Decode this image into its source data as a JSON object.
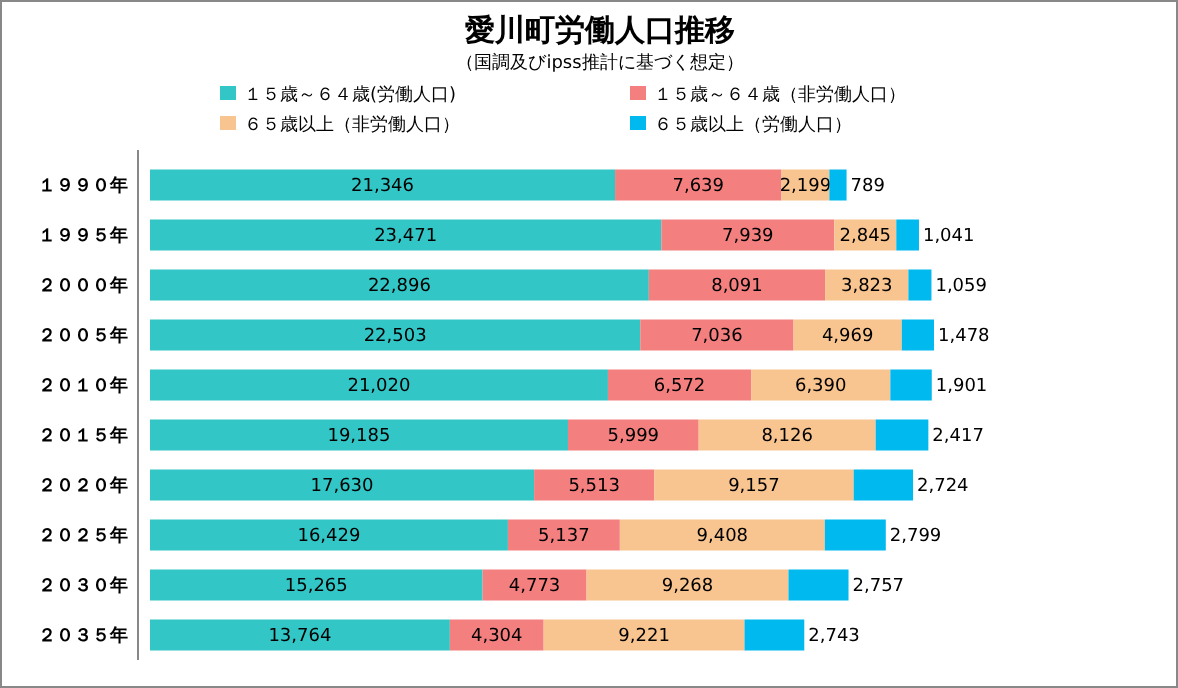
{
  "chart_data": {
    "type": "bar",
    "orientation": "horizontal",
    "stacked": true,
    "title": "愛川町労働人口推移",
    "subtitle": "（国調及びipss推計に基づく想定）",
    "categories": [
      "１９９０年",
      "１９９５年",
      "２０００年",
      "２００５年",
      "２０１０年",
      "２０１５年",
      "２０２０年",
      "２０２５年",
      "２０３０年",
      "２０３５年"
    ],
    "series": [
      {
        "name": "１５歳～６４歳(労働人口)",
        "color": "#33c6c6",
        "values": [
          21346,
          23471,
          22896,
          22503,
          21020,
          19185,
          17630,
          16429,
          15265,
          13764
        ],
        "value_labels": [
          "21,346",
          "23,471",
          "22,896",
          "22,503",
          "21,020",
          "19,185",
          "17,630",
          "16,429",
          "15,265",
          "13,764"
        ]
      },
      {
        "name": "１５歳～６４歳（非労働人口）",
        "color": "#f47f7f",
        "values": [
          7639,
          7939,
          8091,
          7036,
          6572,
          5999,
          5513,
          5137,
          4773,
          4304
        ],
        "value_labels": [
          "7,639",
          "7,939",
          "8,091",
          "7,036",
          "6,572",
          "5,999",
          "5,513",
          "5,137",
          "4,773",
          "4,304"
        ]
      },
      {
        "name": "６５歳以上（非労働人口）",
        "color": "#f8c490",
        "values": [
          2199,
          2845,
          3823,
          4969,
          6390,
          8126,
          9157,
          9408,
          9268,
          9221
        ],
        "value_labels": [
          "2,199",
          "2,845",
          "3,823",
          "4,969",
          "6,390",
          "8,126",
          "9,157",
          "9,408",
          "9,268",
          "9,221"
        ]
      },
      {
        "name": "６５歳以上（労働人口）",
        "color": "#00b9ef",
        "values": [
          789,
          1041,
          1059,
          1478,
          1901,
          2417,
          2724,
          2799,
          2757,
          2743
        ],
        "value_labels": [
          "789",
          "1,041",
          "1,059",
          "1,478",
          "1,901",
          "2,417",
          "2,724",
          "2,799",
          "2,757",
          "2,743"
        ]
      }
    ],
    "tick_labels": "y",
    "legend": "top"
  }
}
